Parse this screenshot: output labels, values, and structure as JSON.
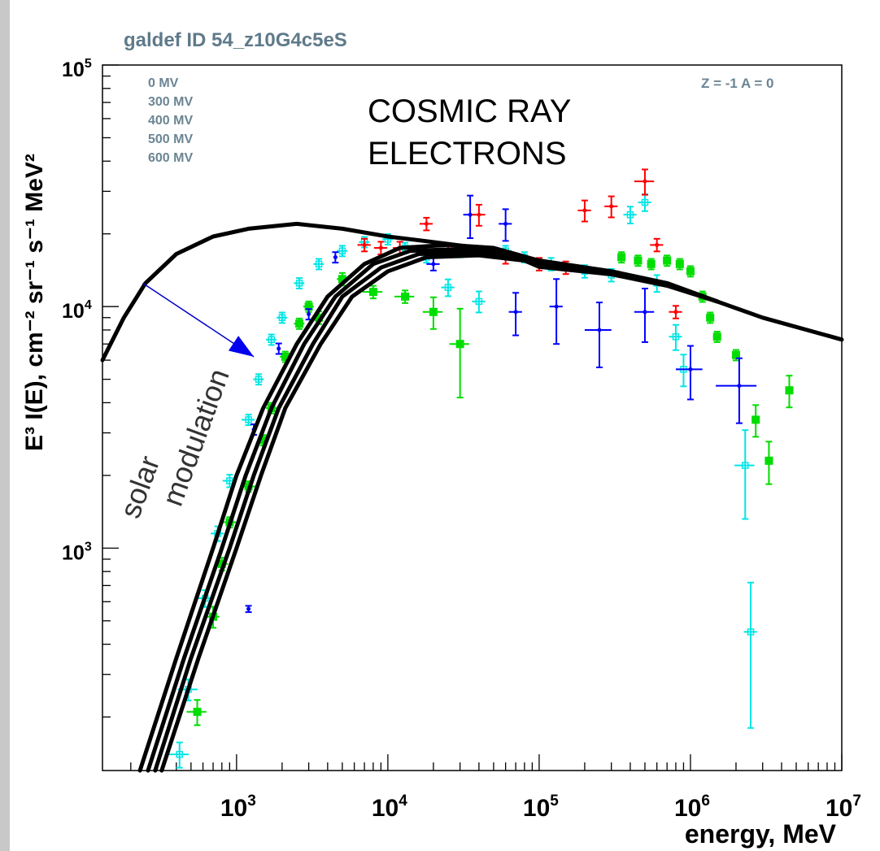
{
  "chart_data": {
    "type": "scatter",
    "title": "galdef ID 54_z10G4c5eS",
    "corner_label": "Z = -1  A = 0",
    "annotation_main": [
      "COSMIC RAY",
      "ELECTRONS"
    ],
    "annotation_modulation": [
      "solar",
      "modulation"
    ],
    "legend": [
      "0 MV",
      "300 MV",
      "400 MV",
      "500 MV",
      "600 MV"
    ],
    "xlabel": "energy, MeV",
    "ylabel": "E³ I(E), cm⁻² sr⁻¹ s⁻¹ MeV²",
    "xscale": "log",
    "yscale": "log",
    "xlim": [
      130,
      10000000
    ],
    "ylim": [
      120,
      100000
    ],
    "x_ticks": [
      {
        "value": 1000,
        "base": "10",
        "exp": "3"
      },
      {
        "value": 10000,
        "base": "10",
        "exp": "4"
      },
      {
        "value": 100000,
        "base": "10",
        "exp": "5"
      },
      {
        "value": 1000000,
        "base": "10",
        "exp": "6"
      },
      {
        "value": 10000000,
        "base": "10",
        "exp": "7"
      }
    ],
    "y_ticks": [
      {
        "value": 1000,
        "base": "10",
        "exp": "3"
      },
      {
        "value": 10000,
        "base": "10",
        "exp": "4"
      },
      {
        "value": 100000,
        "base": "10",
        "exp": "5"
      }
    ],
    "model_curves": [
      {
        "label": "0 MV",
        "points": [
          [
            130,
            6000
          ],
          [
            180,
            9000
          ],
          [
            250,
            12500
          ],
          [
            400,
            16500
          ],
          [
            700,
            19500
          ],
          [
            1200,
            21000
          ],
          [
            2500,
            22000
          ],
          [
            5000,
            21000
          ],
          [
            10000,
            19500
          ],
          [
            20000,
            18500
          ],
          [
            40000,
            17500
          ],
          [
            100000,
            15500
          ],
          [
            300000,
            14000
          ],
          [
            700000,
            12500
          ],
          [
            1500000,
            10500
          ],
          [
            3000000,
            9000
          ],
          [
            10000000,
            7300
          ]
        ]
      },
      {
        "label": "300 MV",
        "points": [
          [
            230,
            120
          ],
          [
            400,
            350
          ],
          [
            700,
            1000
          ],
          [
            1000,
            2000
          ],
          [
            1500,
            3800
          ],
          [
            2500,
            7000
          ],
          [
            4000,
            11000
          ],
          [
            7000,
            15000
          ],
          [
            12000,
            17500
          ],
          [
            25000,
            18000
          ],
          [
            50000,
            17500
          ],
          [
            100000,
            15500
          ],
          [
            300000,
            14000
          ],
          [
            700000,
            12500
          ],
          [
            1500000,
            10500
          ]
        ]
      },
      {
        "label": "400 MV",
        "points": [
          [
            260,
            120
          ],
          [
            450,
            350
          ],
          [
            800,
            1000
          ],
          [
            1150,
            2000
          ],
          [
            1700,
            3800
          ],
          [
            2800,
            7000
          ],
          [
            4500,
            11000
          ],
          [
            8000,
            15000
          ],
          [
            14000,
            17000
          ],
          [
            30000,
            17300
          ],
          [
            60000,
            16500
          ],
          [
            100000,
            15000
          ],
          [
            300000,
            13800
          ],
          [
            700000,
            12400
          ],
          [
            1500000,
            10500
          ]
        ]
      },
      {
        "label": "500 MV",
        "points": [
          [
            290,
            120
          ],
          [
            500,
            350
          ],
          [
            900,
            1000
          ],
          [
            1300,
            2000
          ],
          [
            1900,
            3800
          ],
          [
            3200,
            7000
          ],
          [
            5000,
            11000
          ],
          [
            9000,
            14500
          ],
          [
            16000,
            16500
          ],
          [
            35000,
            16800
          ],
          [
            70000,
            16000
          ],
          [
            100000,
            14800
          ],
          [
            300000,
            13700
          ],
          [
            700000,
            12300
          ],
          [
            1500000,
            10500
          ]
        ]
      },
      {
        "label": "600 MV",
        "points": [
          [
            320,
            120
          ],
          [
            560,
            350
          ],
          [
            1000,
            1000
          ],
          [
            1450,
            2000
          ],
          [
            2100,
            3800
          ],
          [
            3600,
            7000
          ],
          [
            5800,
            11000
          ],
          [
            10000,
            14000
          ],
          [
            18000,
            16000
          ],
          [
            40000,
            16300
          ],
          [
            80000,
            15500
          ],
          [
            100000,
            14600
          ],
          [
            300000,
            13600
          ],
          [
            700000,
            12200
          ],
          [
            1500000,
            10500
          ]
        ]
      }
    ],
    "modulation_arrow": {
      "from": [
        240,
        12500
      ],
      "to": [
        1300,
        6200
      ]
    },
    "series": [
      {
        "name": "",
        "color": "#00e5e5",
        "marker": "open-square",
        "points": [
          [
            420,
            140,
            15,
            0.12
          ],
          [
            480,
            260,
            15,
            0.1
          ],
          [
            620,
            620,
            12,
            0.08
          ],
          [
            750,
            1150,
            10,
            0.07
          ],
          [
            900,
            1900,
            10,
            0.06
          ],
          [
            1200,
            3400,
            10,
            0.05
          ],
          [
            1400,
            5000,
            8,
            0.05
          ],
          [
            1700,
            7300,
            8,
            0.05
          ],
          [
            2000,
            9000,
            8,
            0.05
          ],
          [
            2600,
            12500,
            8,
            0.05
          ],
          [
            3500,
            15000,
            8,
            0.05
          ],
          [
            5000,
            17000,
            8,
            0.05
          ],
          [
            7000,
            18500,
            8,
            0.05
          ],
          [
            10000,
            19000,
            8,
            0.05
          ],
          [
            13000,
            17500,
            8,
            0.05
          ],
          [
            18000,
            16000,
            8,
            0.05
          ],
          [
            25000,
            12000,
            10,
            0.08
          ],
          [
            30000,
            17000,
            10,
            0.06
          ],
          [
            40000,
            10500,
            10,
            0.1
          ],
          [
            60000,
            17000,
            10,
            0.05
          ],
          [
            80000,
            16000,
            10,
            0.05
          ],
          [
            120000,
            15000,
            10,
            0.06
          ],
          [
            200000,
            14000,
            10,
            0.06
          ],
          [
            300000,
            13500,
            10,
            0.06
          ],
          [
            400000,
            24000,
            10,
            0.08
          ],
          [
            500000,
            27000,
            10,
            0.08
          ],
          [
            600000,
            12500,
            10,
            0.08
          ],
          [
            800000,
            7500,
            10,
            0.12
          ],
          [
            900000,
            5500,
            10,
            0.15
          ],
          [
            2300000,
            2200,
            15,
            0.4
          ],
          [
            2500000,
            450,
            10,
            0.6
          ]
        ]
      },
      {
        "name": "",
        "color": "#00dd00",
        "marker": "filled-square",
        "points": [
          [
            550,
            210,
            15,
            0.12
          ],
          [
            700,
            520,
            10,
            0.1
          ],
          [
            800,
            860,
            10,
            0.06
          ],
          [
            900,
            1280,
            10,
            0.05
          ],
          [
            1200,
            1800,
            12,
            0.05
          ],
          [
            1500,
            2800,
            8,
            0.05
          ],
          [
            1700,
            3800,
            8,
            0.05
          ],
          [
            2100,
            6200,
            8,
            0.05
          ],
          [
            2600,
            8500,
            8,
            0.05
          ],
          [
            3000,
            10000,
            8,
            0.05
          ],
          [
            3500,
            9000,
            8,
            0.06
          ],
          [
            5000,
            13000,
            8,
            0.06
          ],
          [
            8000,
            11500,
            15,
            0.06
          ],
          [
            13000,
            11000,
            15,
            0.06
          ],
          [
            20000,
            9500,
            15,
            0.15
          ],
          [
            30000,
            7000,
            15,
            0.4
          ],
          [
            350000,
            16000,
            6,
            0.05
          ],
          [
            450000,
            15500,
            6,
            0.05
          ],
          [
            550000,
            15000,
            6,
            0.05
          ],
          [
            700000,
            15500,
            6,
            0.05
          ],
          [
            850000,
            15000,
            6,
            0.05
          ],
          [
            1000000,
            14000,
            6,
            0.05
          ],
          [
            1200000,
            11000,
            6,
            0.05
          ],
          [
            1350000,
            9000,
            6,
            0.05
          ],
          [
            1500000,
            7500,
            6,
            0.05
          ],
          [
            2000000,
            6300,
            6,
            0.05
          ],
          [
            2700000,
            3400,
            6,
            0.15
          ],
          [
            3300000,
            2300,
            6,
            0.2
          ],
          [
            4500000,
            4500,
            6,
            0.15
          ]
        ]
      },
      {
        "name": "",
        "color": "#0000ff",
        "marker": "dot",
        "points": [
          [
            1200,
            560,
            2,
            0.03
          ],
          [
            1300,
            3100,
            2,
            0.05
          ],
          [
            1900,
            6700,
            2,
            0.05
          ],
          [
            3000,
            9300,
            2,
            0.05
          ],
          [
            4500,
            16000,
            3,
            0.05
          ],
          [
            20000,
            15000,
            10,
            0.06
          ],
          [
            35000,
            24000,
            10,
            0.2
          ],
          [
            60000,
            22000,
            10,
            0.15
          ],
          [
            70000,
            9500,
            10,
            0.2
          ],
          [
            130000,
            10000,
            10,
            0.3
          ],
          [
            250000,
            8000,
            20,
            0.3
          ],
          [
            500000,
            9500,
            15,
            0.25
          ],
          [
            1000000,
            5500,
            20,
            0.25
          ],
          [
            2100000,
            4700,
            30,
            0.3
          ]
        ]
      },
      {
        "name": "",
        "color": "#ff0000",
        "marker": "dot",
        "points": [
          [
            7000,
            18000,
            10,
            0.06
          ],
          [
            9000,
            17500,
            10,
            0.06
          ],
          [
            12000,
            17500,
            10,
            0.06
          ],
          [
            18000,
            22000,
            10,
            0.06
          ],
          [
            25000,
            17000,
            15,
            0.06
          ],
          [
            40000,
            24000,
            10,
            0.1
          ],
          [
            60000,
            16000,
            10,
            0.06
          ],
          [
            100000,
            15000,
            10,
            0.06
          ],
          [
            150000,
            14500,
            10,
            0.06
          ],
          [
            200000,
            25000,
            10,
            0.1
          ],
          [
            300000,
            26000,
            10,
            0.1
          ],
          [
            500000,
            33000,
            15,
            0.12
          ],
          [
            600000,
            18000,
            10,
            0.06
          ],
          [
            800000,
            9500,
            10,
            0.06
          ]
        ]
      }
    ]
  }
}
